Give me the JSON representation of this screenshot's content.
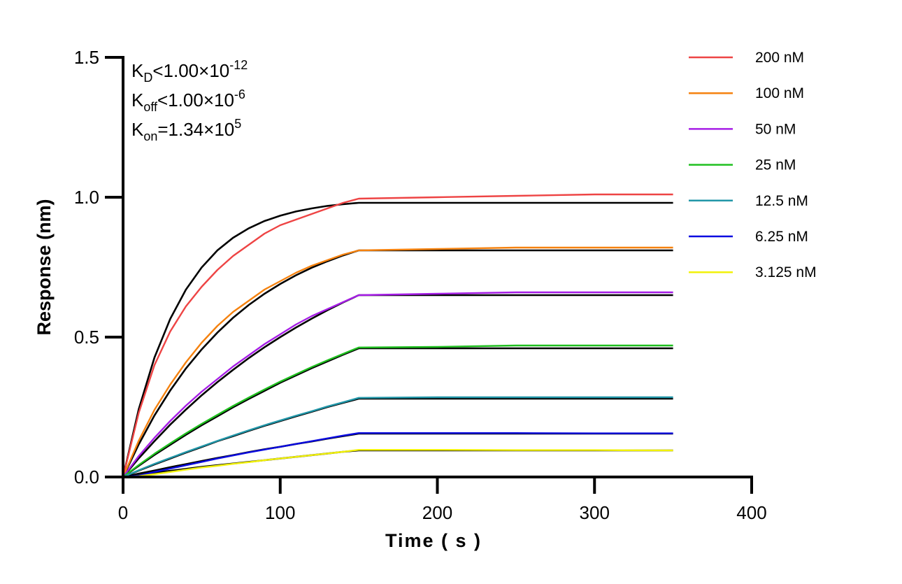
{
  "chart_data": {
    "type": "line",
    "title": "",
    "xlabel": "Time ( s )",
    "ylabel": "Response (nm)",
    "xlim": [
      0,
      400
    ],
    "ylim": [
      0,
      1.5
    ],
    "xticks": [
      "0",
      "100",
      "200",
      "300",
      "400"
    ],
    "yticks": [
      "0.0",
      "0.5",
      "1.0",
      "1.5"
    ],
    "grid": false,
    "legend_placement": "right",
    "annotations": {
      "kd": {
        "main": "K",
        "sub": "D",
        "rel": "<1.00×10",
        "exp": "-12"
      },
      "koff": {
        "main": "K",
        "sub": "off",
        "rel": "<1.00×10",
        "exp": "-6"
      },
      "kon": {
        "main": "K",
        "sub": "on",
        "rel": "=1.34×10",
        "exp": "5"
      }
    },
    "fit_color": "#000000",
    "x": [
      0,
      10,
      20,
      30,
      40,
      50,
      60,
      70,
      80,
      90,
      100,
      110,
      120,
      130,
      140,
      150,
      200,
      250,
      300,
      350
    ],
    "series": [
      {
        "name": "200 nM",
        "color": "#ee4444",
        "values": [
          0,
          0.23,
          0.4,
          0.52,
          0.61,
          0.68,
          0.74,
          0.79,
          0.83,
          0.87,
          0.9,
          0.92,
          0.94,
          0.96,
          0.98,
          0.995,
          1.0,
          1.005,
          1.01,
          1.01
        ],
        "fit": [
          0,
          0.243,
          0.427,
          0.565,
          0.67,
          0.749,
          0.81,
          0.855,
          0.889,
          0.915,
          0.934,
          0.949,
          0.96,
          0.969,
          0.975,
          0.98,
          0.98,
          0.98,
          0.98,
          0.98
        ]
      },
      {
        "name": "100 nM",
        "color": "#f5820f",
        "values": [
          0,
          0.13,
          0.24,
          0.33,
          0.41,
          0.48,
          0.54,
          0.59,
          0.63,
          0.67,
          0.7,
          0.73,
          0.755,
          0.775,
          0.795,
          0.81,
          0.815,
          0.82,
          0.82,
          0.82
        ],
        "fit": [
          0,
          0.117,
          0.22,
          0.309,
          0.388,
          0.456,
          0.516,
          0.569,
          0.615,
          0.655,
          0.69,
          0.721,
          0.748,
          0.771,
          0.792,
          0.81,
          0.81,
          0.81,
          0.81,
          0.81
        ]
      },
      {
        "name": "50 nM",
        "color": "#a61ee6",
        "values": [
          0,
          0.075,
          0.14,
          0.2,
          0.255,
          0.305,
          0.35,
          0.395,
          0.435,
          0.475,
          0.51,
          0.545,
          0.575,
          0.6,
          0.625,
          0.65,
          0.655,
          0.66,
          0.66,
          0.66
        ],
        "fit": [
          0,
          0.067,
          0.128,
          0.187,
          0.241,
          0.292,
          0.339,
          0.383,
          0.425,
          0.464,
          0.5,
          0.534,
          0.566,
          0.596,
          0.624,
          0.65,
          0.65,
          0.65,
          0.65,
          0.65
        ]
      },
      {
        "name": "25 nM",
        "color": "#1fbf1f",
        "values": [
          0,
          0.043,
          0.083,
          0.12,
          0.156,
          0.19,
          0.222,
          0.254,
          0.284,
          0.313,
          0.341,
          0.367,
          0.393,
          0.417,
          0.44,
          0.463,
          0.465,
          0.47,
          0.47,
          0.47
        ],
        "fit": [
          0,
          0.04,
          0.079,
          0.115,
          0.151,
          0.185,
          0.217,
          0.249,
          0.279,
          0.308,
          0.337,
          0.363,
          0.389,
          0.413,
          0.437,
          0.46,
          0.46,
          0.46,
          0.46,
          0.46
        ]
      },
      {
        "name": "12.5 nM",
        "color": "#2196a8",
        "values": [
          0,
          0.024,
          0.047,
          0.068,
          0.089,
          0.109,
          0.129,
          0.148,
          0.167,
          0.185,
          0.202,
          0.219,
          0.235,
          0.252,
          0.267,
          0.283,
          0.285,
          0.285,
          0.285,
          0.285
        ],
        "fit": [
          0,
          0.023,
          0.045,
          0.066,
          0.087,
          0.107,
          0.128,
          0.146,
          0.165,
          0.183,
          0.2,
          0.217,
          0.233,
          0.25,
          0.265,
          0.28,
          0.28,
          0.28,
          0.28,
          0.28
        ]
      },
      {
        "name": "6.25 nM",
        "color": "#0a0ae0",
        "values": [
          0,
          0.005,
          0.018,
          0.03,
          0.042,
          0.054,
          0.066,
          0.077,
          0.088,
          0.098,
          0.108,
          0.118,
          0.128,
          0.138,
          0.148,
          0.157,
          0.157,
          0.157,
          0.156,
          0.156
        ],
        "fit": [
          0,
          0.012,
          0.023,
          0.035,
          0.046,
          0.057,
          0.068,
          0.078,
          0.089,
          0.099,
          0.108,
          0.118,
          0.127,
          0.137,
          0.146,
          0.155,
          0.155,
          0.155,
          0.155,
          0.155
        ]
      },
      {
        "name": "3.125 nM",
        "color": "#f2f20a",
        "values": [
          0,
          0.003,
          0.01,
          0.018,
          0.026,
          0.034,
          0.04,
          0.047,
          0.053,
          0.06,
          0.066,
          0.072,
          0.078,
          0.084,
          0.09,
          0.097,
          0.097,
          0.096,
          0.096,
          0.095
        ],
        "fit": [
          0,
          0.008,
          0.015,
          0.022,
          0.029,
          0.036,
          0.042,
          0.048,
          0.054,
          0.06,
          0.066,
          0.072,
          0.078,
          0.084,
          0.09,
          0.095,
          0.095,
          0.095,
          0.095,
          0.095
        ]
      }
    ]
  }
}
